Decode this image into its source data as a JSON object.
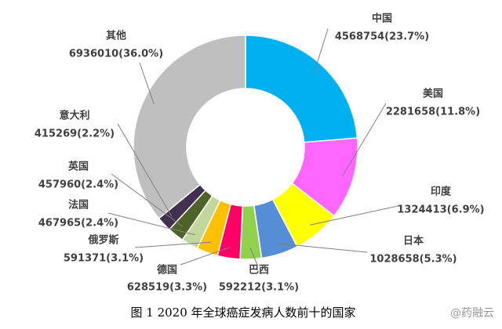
{
  "chart_data": {
    "type": "donut",
    "categories": [
      "中国",
      "美国",
      "印度",
      "日本",
      "巴西",
      "德国",
      "俄罗斯",
      "法国",
      "英国",
      "意大利",
      "其他"
    ],
    "values": [
      4568754,
      2281658,
      1324413,
      1028658,
      592212,
      628519,
      591371,
      467965,
      457960,
      415269,
      6936010
    ],
    "value_labels": [
      "4568754(23.7%)",
      "2281658(11.8%)",
      "1324413(6.9%)",
      "1028658(5.3%)",
      "592212(3.1%)",
      "628519(3.3%)",
      "591371(3.1%)",
      "467965(2.4%)",
      "457960(2.4%)",
      "415269(2.2%)",
      "6936010(36.0%)"
    ],
    "colors": [
      "#00b0f0",
      "#ff66ff",
      "#ffff00",
      "#558ed5",
      "#92d050",
      "#ff0066",
      "#ffc000",
      "#c3d69b",
      "#4f6228",
      "#403151",
      "#bfbfbf"
    ],
    "caption": "图 1 2020 年全球癌症发病人数前十的国家",
    "watermark": "@药融云"
  }
}
